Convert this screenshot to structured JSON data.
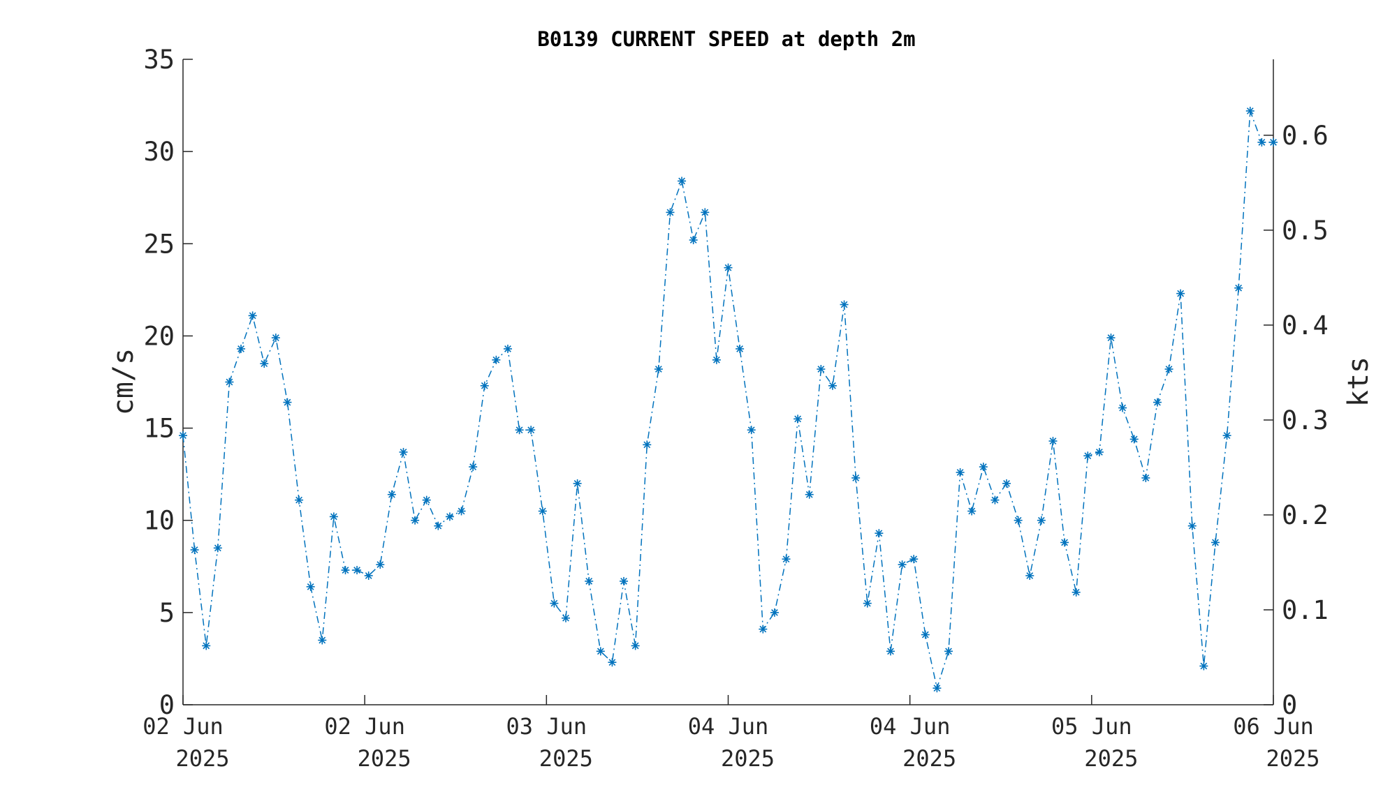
{
  "chart_data": {
    "type": "line",
    "title": "B0139 CURRENT SPEED at depth 2m",
    "ylabel": "cm/s",
    "ylabel_right": "kts",
    "ylim": [
      0,
      35
    ],
    "ylim_right": [
      0,
      0.68
    ],
    "yticks": [
      "0",
      "5",
      "10",
      "15",
      "20",
      "25",
      "30",
      "35"
    ],
    "yticks_right": [
      "0",
      "0.1",
      "0.2",
      "0.3",
      "0.4",
      "0.5",
      "0.6"
    ],
    "xlim_hours": [
      0,
      96
    ],
    "xticks": [
      {
        "day": "02 Jun",
        "year": "2025"
      },
      {
        "day": "02 Jun",
        "year": "2025"
      },
      {
        "day": "03 Jun",
        "year": "2025"
      },
      {
        "day": "04 Jun",
        "year": "2025"
      },
      {
        "day": "04 Jun",
        "year": "2025"
      },
      {
        "day": "05 Jun",
        "year": "2025"
      },
      {
        "day": "06 Jun",
        "year": "2025"
      }
    ],
    "grid": false,
    "color": "#0072BD",
    "line_style": "dash-dot",
    "marker": "asterisk",
    "series": [
      {
        "values": [
          14.6,
          8.4,
          3.2,
          8.5,
          17.5,
          19.3,
          21.1,
          18.5,
          19.9,
          16.4,
          11.1,
          6.4,
          3.5,
          10.2,
          7.3,
          7.3,
          7.0,
          7.6,
          11.4,
          13.7,
          10.0,
          11.1,
          9.7,
          10.2,
          10.5,
          12.9,
          17.3,
          18.7,
          19.3,
          14.9,
          14.9,
          10.5,
          5.5,
          4.7,
          12.0,
          6.7,
          2.9,
          2.3,
          6.7,
          3.2,
          14.1,
          18.2,
          26.7,
          28.4,
          25.2,
          26.7,
          18.7,
          23.7,
          19.3,
          14.9,
          4.1,
          5.0,
          7.9,
          15.5,
          11.4,
          18.2,
          17.3,
          21.7,
          12.3,
          5.5,
          9.3,
          2.9,
          7.6,
          7.9,
          3.8,
          0.9,
          2.9,
          12.6,
          10.5,
          12.9,
          11.1,
          12.0,
          10.0,
          7.0,
          10.0,
          14.3,
          8.8,
          6.1,
          13.5,
          13.7,
          19.9,
          16.1,
          14.4,
          12.3,
          16.4,
          18.2,
          22.3,
          9.7,
          2.1,
          8.8,
          14.6,
          22.6,
          32.2,
          30.5,
          30.5
        ]
      }
    ]
  }
}
